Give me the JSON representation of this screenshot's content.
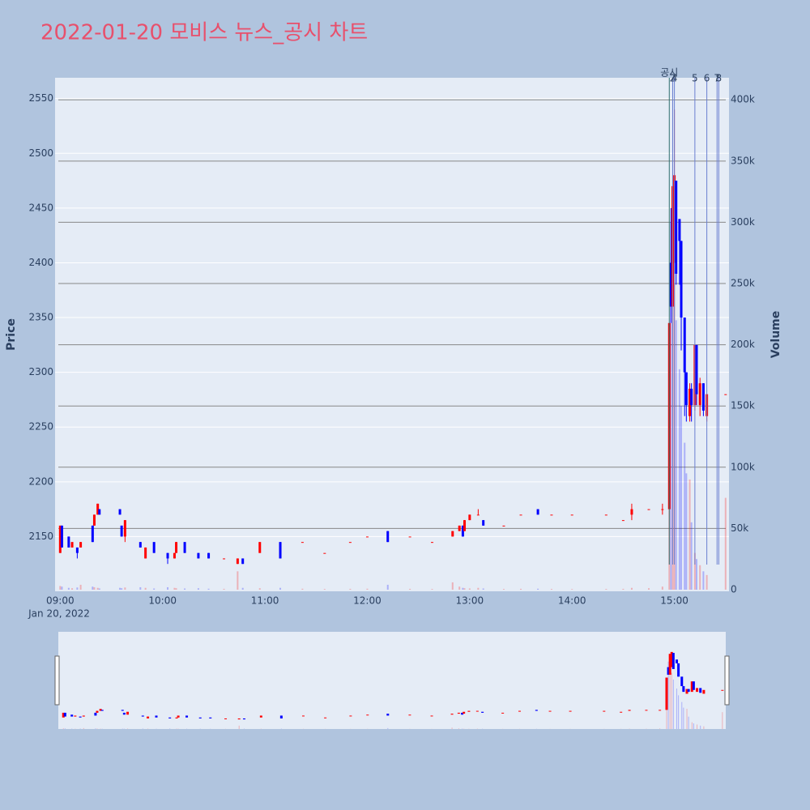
{
  "chart_data": {
    "type": "candlestick",
    "title": "2022-01-20 모비스 뉴스_공시 차트",
    "y_axis_label": "Price",
    "y2_axis_label": "Volume",
    "x_date_label": "Jan 20, 2022",
    "x": [
      "09:00",
      "09:01",
      "09:05",
      "09:07",
      "09:10",
      "09:12",
      "09:19",
      "09:20",
      "09:22",
      "09:23",
      "09:35",
      "09:36",
      "09:38",
      "09:47",
      "09:50",
      "09:55",
      "10:03",
      "10:07",
      "10:08",
      "10:13",
      "10:21",
      "10:27",
      "10:36",
      "10:44",
      "10:47",
      "10:57",
      "11:09",
      "11:22",
      "11:35",
      "11:50",
      "12:00",
      "12:12",
      "12:25",
      "12:38",
      "12:50",
      "12:54",
      "12:56",
      "12:57",
      "13:00",
      "13:05",
      "13:08",
      "13:20",
      "13:30",
      "13:40",
      "13:48",
      "14:00",
      "14:20",
      "14:30",
      "14:35",
      "14:45",
      "14:53",
      "14:57",
      "14:58",
      "14:59",
      "15:00",
      "15:01",
      "15:03",
      "15:04",
      "15:06",
      "15:07",
      "15:09",
      "15:10",
      "15:12",
      "15:13",
      "15:15",
      "15:17",
      "15:19",
      "15:30"
    ],
    "open": [
      2135,
      2160,
      2150,
      2140,
      2140,
      2140,
      2160,
      2160,
      2170,
      2175,
      2175,
      2160,
      2150,
      2145,
      2130,
      2145,
      2135,
      2130,
      2135,
      2145,
      2135,
      2135,
      2130,
      2125,
      2130,
      2135,
      2145,
      2145,
      2135,
      2145,
      2150,
      2155,
      2150,
      2145,
      2150,
      2155,
      2160,
      2155,
      2165,
      2170,
      2165,
      2160,
      2170,
      2175,
      2170,
      2170,
      2170,
      2165,
      2170,
      2175,
      2175,
      2175,
      2400,
      2360,
      2400,
      2475,
      2440,
      2420,
      2350,
      2300,
      2260,
      2285,
      2270,
      2325,
      2270,
      2290,
      2260,
      2280
    ],
    "high": [
      2160,
      2160,
      2150,
      2145,
      2140,
      2145,
      2160,
      2170,
      2180,
      2175,
      2175,
      2160,
      2165,
      2145,
      2140,
      2145,
      2135,
      2135,
      2145,
      2145,
      2135,
      2135,
      2130,
      2130,
      2130,
      2145,
      2145,
      2145,
      2135,
      2145,
      2150,
      2155,
      2150,
      2145,
      2155,
      2160,
      2160,
      2165,
      2170,
      2175,
      2165,
      2160,
      2170,
      2175,
      2170,
      2170,
      2170,
      2165,
      2180,
      2175,
      2180,
      2345,
      2450,
      2470,
      2540,
      2475,
      2440,
      2420,
      2350,
      2300,
      2290,
      2290,
      2325,
      2325,
      2295,
      2290,
      2280,
      2280
    ],
    "low": [
      2135,
      2140,
      2140,
      2140,
      2130,
      2140,
      2145,
      2160,
      2170,
      2170,
      2170,
      2150,
      2145,
      2140,
      2130,
      2135,
      2125,
      2130,
      2135,
      2135,
      2130,
      2130,
      2130,
      2125,
      2125,
      2135,
      2130,
      2145,
      2135,
      2145,
      2150,
      2145,
      2150,
      2145,
      2150,
      2155,
      2150,
      2155,
      2165,
      2170,
      2160,
      2160,
      2170,
      2170,
      2170,
      2170,
      2170,
      2165,
      2165,
      2175,
      2170,
      2175,
      2345,
      2360,
      2400,
      2380,
      2380,
      2320,
      2260,
      2255,
      2255,
      2255,
      2265,
      2270,
      2260,
      2260,
      2255,
      2280
    ],
    "close": [
      2160,
      2140,
      2140,
      2145,
      2135,
      2145,
      2145,
      2170,
      2180,
      2170,
      2170,
      2150,
      2165,
      2140,
      2140,
      2135,
      2130,
      2135,
      2145,
      2135,
      2130,
      2130,
      2130,
      2130,
      2125,
      2145,
      2130,
      2145,
      2135,
      2145,
      2150,
      2145,
      2150,
      2145,
      2155,
      2160,
      2150,
      2165,
      2170,
      2170,
      2160,
      2160,
      2170,
      2170,
      2170,
      2170,
      2170,
      2165,
      2175,
      2175,
      2175,
      2345,
      2360,
      2470,
      2480,
      2390,
      2420,
      2350,
      2300,
      2270,
      2285,
      2270,
      2325,
      2280,
      2290,
      2265,
      2280,
      2280
    ],
    "volume": [
      3000,
      2500,
      1500,
      1200,
      1800,
      4000,
      2500,
      2000,
      1500,
      1000,
      1500,
      1200,
      1800,
      2000,
      1500,
      1000,
      2000,
      1500,
      1200,
      1000,
      1200,
      800,
      700,
      15000,
      1500,
      1200,
      1500,
      800,
      600,
      700,
      800,
      4000,
      700,
      600,
      6000,
      2500,
      1500,
      1200,
      1000,
      1500,
      1000,
      600,
      700,
      800,
      600,
      500,
      600,
      700,
      1500,
      1200,
      2500,
      216000,
      300000,
      280000,
      250000,
      220000,
      180000,
      150000,
      120000,
      95000,
      90000,
      55000,
      30000,
      25000,
      20000,
      15000,
      12000,
      75000
    ],
    "increasing_color": "#ff0000",
    "decreasing_color": "#0000ff",
    "xlim": [
      "08:57",
      "15:32"
    ],
    "xticks": [
      "09:00",
      "10:00",
      "11:00",
      "12:00",
      "13:00",
      "14:00",
      "15:00"
    ],
    "ylim": [
      2100,
      2569
    ],
    "yticks": [
      2150,
      2200,
      2250,
      2300,
      2350,
      2400,
      2450,
      2500,
      2550
    ],
    "y2lim": [
      0,
      418000
    ],
    "y2ticks": [
      0,
      {
        "value": 50000,
        "label": "50k"
      },
      {
        "value": 100000,
        "label": "100k"
      },
      {
        "value": 150000,
        "label": "150k"
      },
      {
        "value": 200000,
        "label": "200k"
      },
      {
        "value": 250000,
        "label": "250k"
      },
      {
        "value": 300000,
        "label": "300k"
      },
      {
        "value": 350000,
        "label": "350k"
      },
      {
        "value": 400000,
        "label": "400k"
      }
    ],
    "events": [
      {
        "x": "14:57",
        "label": "공시"
      },
      {
        "x": "14:59",
        "label": "2"
      },
      {
        "x": "15:00",
        "label": "4"
      },
      {
        "x": "15:12",
        "label": "5"
      },
      {
        "x": "15:19",
        "label": "6"
      },
      {
        "x": "15:25",
        "label": "7"
      },
      {
        "x": "15:26",
        "label": "8"
      }
    ]
  }
}
